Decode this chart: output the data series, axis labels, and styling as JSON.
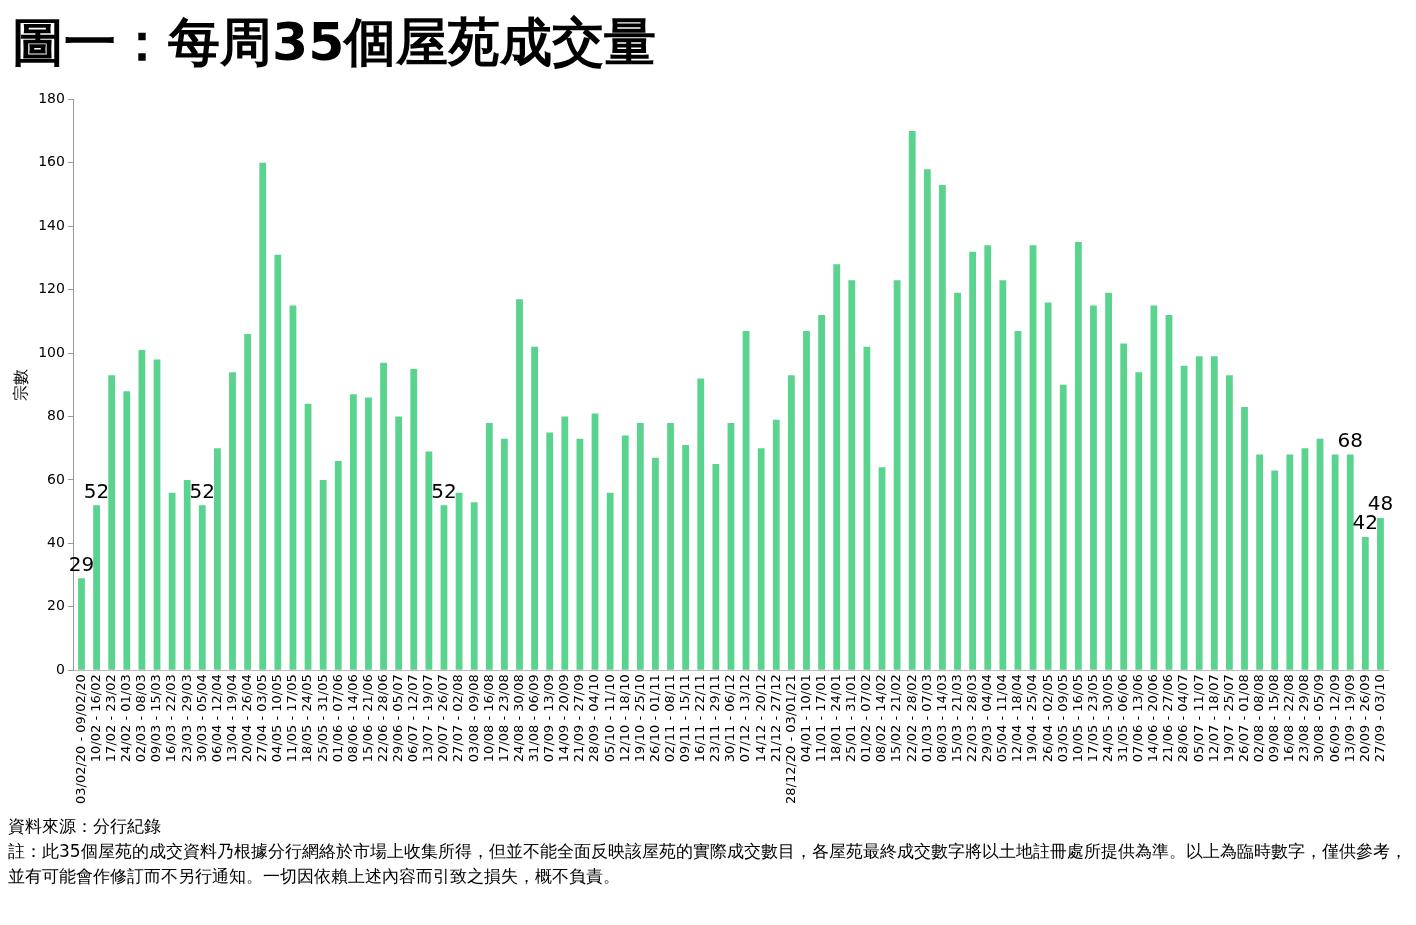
{
  "chart_data": {
    "type": "bar",
    "title": "圖一：每周35個屋苑成交量",
    "ylabel": "宗數",
    "categories": [
      "03/02/20 - 09/02/20",
      "10/02 - 16/02",
      "17/02 - 23/02",
      "24/02 - 01/03",
      "02/03 - 08/03",
      "09/03 - 15/03",
      "16/03 - 22/03",
      "23/03 - 29/03",
      "30/03 - 05/04",
      "06/04 - 12/04",
      "13/04 - 19/04",
      "20/04 - 26/04",
      "27/04 - 03/05",
      "04/05 - 10/05",
      "11/05 - 17/05",
      "18/05 - 24/05",
      "25/05 - 31/05",
      "01/06 - 07/06",
      "08/06 - 14/06",
      "15/06 - 21/06",
      "22/06 - 28/06",
      "29/06 - 05/07",
      "06/07 - 12/07",
      "13/07 - 19/07",
      "20/07 - 26/07",
      "27/07 - 02/08",
      "03/08 - 09/08",
      "10/08 - 16/08",
      "17/08 - 23/08",
      "24/08 - 30/08",
      "31/08 - 06/09",
      "07/09 - 13/09",
      "14/09 - 20/09",
      "21/09 - 27/09",
      "28/09 - 04/10",
      "05/10 - 11/10",
      "12/10 - 18/10",
      "19/10 - 25/10",
      "26/10 - 01/11",
      "02/11 - 08/11",
      "09/11 - 15/11",
      "16/11 - 22/11",
      "23/11 - 29/11",
      "30/11 - 06/12",
      "07/12 - 13/12",
      "14/12 - 20/12",
      "21/12 - 27/12",
      "28/12/20 - 03/01/21",
      "04/01 - 10/01",
      "11/01 - 17/01",
      "18/01 - 24/01",
      "25/01 - 31/01",
      "01/02 - 07/02",
      "08/02 - 14/02",
      "15/02 - 21/02",
      "22/02 - 28/02",
      "01/03 - 07/03",
      "08/03 - 14/03",
      "15/03 - 21/03",
      "22/03 - 28/03",
      "29/03 - 04/04",
      "05/04 - 11/04",
      "12/04 - 18/04",
      "19/04 - 25/04",
      "26/04 - 02/05",
      "03/05 - 09/05",
      "10/05 - 16/05",
      "17/05 - 23/05",
      "24/05 - 30/05",
      "31/05 - 06/06",
      "07/06 - 13/06",
      "14/06 - 20/06",
      "21/06 - 27/06",
      "28/06 - 04/07",
      "05/07 - 11/07",
      "12/07 - 18/07",
      "19/07 - 25/07",
      "26/07 - 01/08",
      "02/08 - 08/08",
      "09/08 - 15/08",
      "16/08 - 22/08",
      "23/08 - 29/08",
      "30/08 - 05/09",
      "06/09 - 12/09",
      "13/09 - 19/09",
      "20/09 - 26/09",
      "27/09 - 03/10"
    ],
    "values": [
      29,
      52,
      93,
      88,
      101,
      98,
      56,
      60,
      52,
      70,
      94,
      106,
      160,
      131,
      115,
      84,
      60,
      66,
      87,
      86,
      97,
      80,
      95,
      69,
      52,
      56,
      53,
      78,
      73,
      117,
      102,
      75,
      80,
      73,
      81,
      56,
      74,
      78,
      67,
      78,
      71,
      92,
      65,
      78,
      107,
      70,
      79,
      93,
      107,
      112,
      128,
      123,
      102,
      64,
      123,
      170,
      158,
      153,
      119,
      132,
      134,
      123,
      107,
      134,
      116,
      90,
      135,
      115,
      119,
      103,
      94,
      115,
      112,
      96,
      99,
      99,
      93,
      83,
      68,
      63,
      68,
      70,
      73,
      68,
      68,
      42,
      48
    ],
    "value_labels": [
      "29",
      "52",
      null,
      null,
      null,
      null,
      null,
      null,
      "52",
      null,
      null,
      null,
      null,
      null,
      null,
      null,
      null,
      null,
      null,
      null,
      null,
      null,
      null,
      null,
      "52",
      null,
      null,
      null,
      null,
      null,
      null,
      null,
      null,
      null,
      null,
      null,
      null,
      null,
      null,
      null,
      null,
      null,
      null,
      null,
      null,
      null,
      null,
      null,
      null,
      null,
      null,
      null,
      null,
      null,
      null,
      null,
      null,
      null,
      null,
      null,
      null,
      null,
      null,
      null,
      null,
      null,
      null,
      null,
      null,
      null,
      null,
      null,
      null,
      null,
      null,
      null,
      null,
      null,
      null,
      null,
      null,
      null,
      null,
      null,
      "68",
      "42",
      "48"
    ],
    "color": "#5ad38e",
    "ylim": [
      0,
      180
    ],
    "yticks": [
      0,
      20,
      40,
      60,
      80,
      100,
      120,
      140,
      160,
      180
    ],
    "grid": false,
    "legend": false,
    "annotations": [
      "資料來源：分行紀錄",
      "註：此35個屋苑的成交資料乃根據分行網絡於市場上收集所得，但並不能全面反映該屋苑的實際成交數目，各屋苑最終成交數字將以土地註冊處所提供為準。以上為臨時數字，僅供參考，並有可能會作修訂而不另行通知。一切因依賴上述內容而引致之損失，概不負責。"
    ]
  }
}
